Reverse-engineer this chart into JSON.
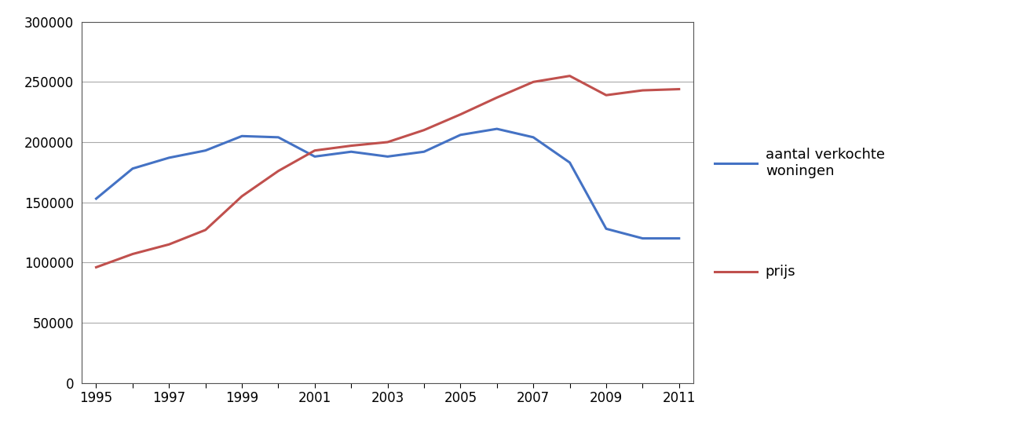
{
  "years": [
    1995,
    1996,
    1997,
    1998,
    1999,
    2000,
    2001,
    2002,
    2003,
    2004,
    2005,
    2006,
    2007,
    2008,
    2009,
    2010,
    2011
  ],
  "aantal": [
    153000,
    178000,
    187000,
    193000,
    205000,
    204000,
    188000,
    192000,
    188000,
    192000,
    206000,
    211000,
    204000,
    183000,
    128000,
    120000,
    120000
  ],
  "prijs": [
    96000,
    107000,
    115000,
    127000,
    155000,
    176000,
    193000,
    197000,
    200000,
    210000,
    223000,
    237000,
    250000,
    255000,
    239000,
    243000,
    244000
  ],
  "aantal_color": "#4472C4",
  "prijs_color": "#C0504D",
  "legend_label_aantal": "aantal verkochte\nwoningen",
  "legend_label_prijs": "prijs",
  "ylim": [
    0,
    300000
  ],
  "yticks": [
    0,
    50000,
    100000,
    150000,
    200000,
    250000,
    300000
  ],
  "xtick_all": [
    1995,
    1996,
    1997,
    1998,
    1999,
    2000,
    2001,
    2002,
    2003,
    2004,
    2005,
    2006,
    2007,
    2008,
    2009,
    2010,
    2011
  ],
  "xtick_labeled": [
    1995,
    1997,
    1999,
    2001,
    2003,
    2005,
    2007,
    2009,
    2011
  ],
  "line_width": 2.2,
  "background_color": "#FFFFFF",
  "grid_color": "#AAAAAA",
  "legend_fontsize": 13,
  "tick_fontsize": 12,
  "xlim_left": 1994.6,
  "xlim_right": 2011.4
}
